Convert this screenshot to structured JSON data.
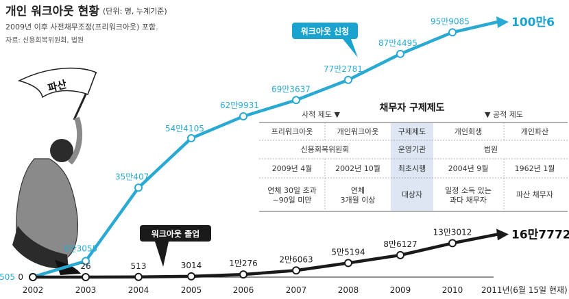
{
  "header": {
    "title": "개인 워크아웃 현황",
    "unit": "(단위: 명, 누계기준)",
    "subtitle": "2009년 이후 사전채무조정(프리워크아웃) 포함.",
    "source": "자료: 신용회복위원회, 법원"
  },
  "colors": {
    "applications": "#2aa9d2",
    "graduations": "#1a1a1a",
    "highlight": "#dde6f2"
  },
  "chart_data": {
    "type": "line",
    "x": [
      "2002",
      "2003",
      "2004",
      "2005",
      "2006",
      "2007",
      "2008",
      "2009",
      "2010",
      "2011년(6월 15일 현재)"
    ],
    "ylim": [
      0,
      1000000
    ],
    "series": [
      {
        "name": "워크아웃 신청",
        "values": [
          505,
          63055,
          350407,
          544105,
          629931,
          693637,
          772781,
          874495,
          959085,
          1000006
        ],
        "labels": [
          "505",
          "6만3055",
          "35만407",
          "54만4105",
          "62만9931",
          "69만3637",
          "77만2781",
          "87만4495",
          "95만9085",
          "100만6"
        ]
      },
      {
        "name": "워크아웃 졸업",
        "values": [
          0,
          26,
          513,
          3014,
          10276,
          26063,
          55194,
          86127,
          133012,
          167772
        ],
        "labels": [
          "0",
          "26",
          "513",
          "3014",
          "1만276",
          "2만6063",
          "5만5194",
          "8만6127",
          "13만3012",
          "16만7772"
        ]
      }
    ]
  },
  "illustration": {
    "flag_text": "파산"
  },
  "table": {
    "title": "채무자 구제제도",
    "left_group": "사적 제도 ▼",
    "right_group": "▼ 공적 제도",
    "headers": [
      "프리워크아웃",
      "개인워크아웃",
      "구제제도",
      "개인회생",
      "개인파산"
    ],
    "operator_left": "신용회복위원회",
    "operator_label": "운영기관",
    "operator_right": "법원",
    "start": [
      "2009년 4월",
      "2002년 10월",
      "최초시행",
      "2004년 9월",
      "1962년 1월"
    ],
    "target": [
      "연체 30일 초과\n~90일 미만",
      "연체\n3개월 이상",
      "대상자",
      "일정 소득 있는\n과다 채무자",
      "파산 채무자"
    ]
  }
}
